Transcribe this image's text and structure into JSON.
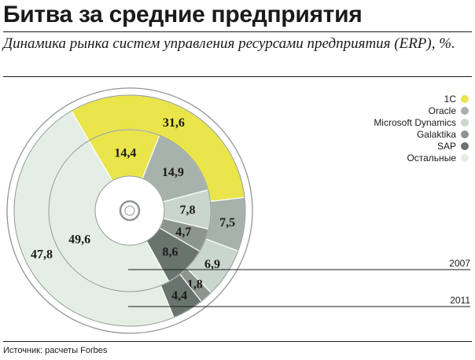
{
  "header": {
    "title": "Битва за средние предприятия",
    "subtitle": "Динамика рынка систем управления ресурсами предприятия (ERP), %."
  },
  "source": "Источник: расчеты Forbes",
  "colors": {
    "1С": "#e9e54a",
    "Oracle": "#a8b2ac",
    "Microsoft Dynamics": "#c9d6cd",
    "Galaktika": "#8c9590",
    "SAP": "#6a746f",
    "Остальные": "#e4eee4",
    "stroke": "#8f9893"
  },
  "chart_data": {
    "type": "pie",
    "title": "Динамика рынка систем управления ресурсами предприятия (ERP), %.",
    "legend": [
      "1С",
      "Oracle",
      "Microsoft Dynamics",
      "Galaktika",
      "SAP",
      "Остальные"
    ],
    "rings": [
      {
        "year": "2007",
        "labels": [
          "1С",
          "Oracle",
          "Microsoft Dynamics",
          "Galaktika",
          "SAP",
          "Остальные"
        ],
        "values": [
          14.4,
          14.9,
          7.8,
          4.7,
          8.6,
          49.6
        ],
        "display": [
          "14,4",
          "14,9",
          "7,8",
          "4,7",
          "8,6",
          "49,6"
        ]
      },
      {
        "year": "2011",
        "labels": [
          "1С",
          "Oracle",
          "Microsoft Dynamics",
          "Galaktika",
          "SAP",
          "Остальные"
        ],
        "values": [
          31.6,
          7.5,
          6.9,
          1.8,
          4.4,
          47.8
        ],
        "display": [
          "31,6",
          "7,5",
          "6,9",
          "1,8",
          "4,4",
          "47,8"
        ]
      }
    ]
  }
}
